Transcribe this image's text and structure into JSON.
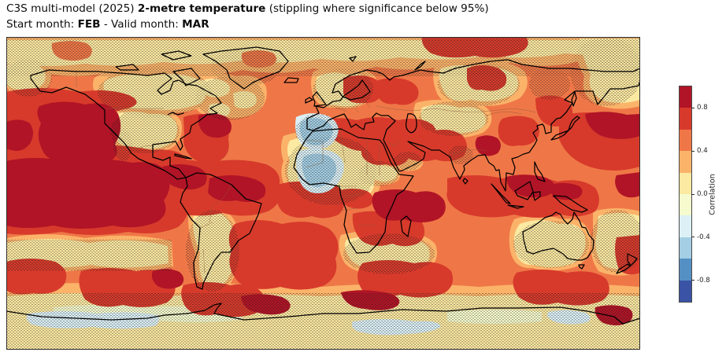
{
  "figure": {
    "background_color": "#ffffff",
    "title": {
      "part1": "C3S multi-model (2025) ",
      "bold1": "2-metre temperature",
      "part2": " (stippling where significance below 95%)"
    },
    "subtitle": {
      "label1": "Start month: ",
      "value1": "FEB",
      "label2": " - Valid month: ",
      "value2": "MAR"
    }
  },
  "map": {
    "projection": "equirectangular (PlateCarree) world map, lon -180..180, lat -90..90",
    "coastline_color": "#000000",
    "country_border_color": "#8a5a3a",
    "frame_color": "#2f2f2f",
    "stipple_color": "#1b1b1b"
  },
  "colorbar": {
    "label": "Correlation",
    "ticks": [
      "0.8",
      "0.4",
      "0.0",
      "-0.4",
      "-0.8"
    ],
    "tick_values": [
      0.8,
      0.4,
      0.0,
      -0.4,
      -0.8
    ],
    "range": [
      -1,
      1
    ],
    "level_boundaries": [
      1.0,
      0.8,
      0.6,
      0.4,
      0.2,
      0.0,
      -0.2,
      -0.4,
      -0.6,
      -0.8,
      -1.0
    ],
    "palette_top_to_bottom": [
      "#b11426",
      "#d73a2b",
      "#ef7747",
      "#fbb36a",
      "#fce9a2",
      "#f6fbce",
      "#dcf0f6",
      "#a3cee3",
      "#5590c4",
      "#3a53a5"
    ]
  },
  "chart_data": {
    "type": "heatmap",
    "subtype": "filled-contour correlation map on world geography with significance stippling",
    "title": "C3S multi-model (2025) 2-metre temperature (stippling where significance below 95%)",
    "subtitle": "Start month: FEB - Valid month: MAR",
    "variable": "Forecast skill (correlation) of 2-metre temperature",
    "colorbar_label": "Correlation",
    "value_range": [
      -1,
      1
    ],
    "contour_levels": [
      -1,
      -0.8,
      -0.6,
      -0.4,
      -0.2,
      0,
      0.2,
      0.4,
      0.6,
      0.8,
      1
    ],
    "tick_labels": [
      "0.8",
      "0.4",
      "0.0",
      "-0.4",
      "-0.8"
    ],
    "stippling_meaning": "stippling where significance below 95%",
    "legend_position": "right vertical colorbar",
    "regional_values": [
      {
        "region": "Tropical central/eastern Pacific (ENSO region)",
        "correlation": 0.9,
        "stippled": false
      },
      {
        "region": "North-east Pacific / Gulf of Alaska",
        "correlation": 0.9,
        "stippled": false
      },
      {
        "region": "Central North Atlantic subtropics",
        "correlation": 0.9,
        "stippled": false
      },
      {
        "region": "Tropical Atlantic and Caribbean",
        "correlation": 0.85,
        "stippled": false
      },
      {
        "region": "Tropical Indian Ocean",
        "correlation": 0.85,
        "stippled": false
      },
      {
        "region": "Tibetan Plateau",
        "correlation": 0.85,
        "stippled": false
      },
      {
        "region": "Pacific east of Japan",
        "correlation": 0.85,
        "stippled": false
      },
      {
        "region": "Maritime Continent seas / Philippines / Timor",
        "correlation": 0.85,
        "stippled": false
      },
      {
        "region": "Ross Sea sector",
        "correlation": 0.9,
        "stippled": false
      },
      {
        "region": "Mediterranean, Black Sea, Middle East",
        "correlation": 0.7,
        "stippled": false
      },
      {
        "region": "Most mid-latitude oceans",
        "correlation": 0.5,
        "stippled": false
      },
      {
        "region": "Northern Canada interior",
        "correlation": 0.15,
        "stippled": true
      },
      {
        "region": "Central United States",
        "correlation": 0.2,
        "stippled": true
      },
      {
        "region": "Arctic band / Bering Sea",
        "correlation": 0.15,
        "stippled": true
      },
      {
        "region": "Scandinavia",
        "correlation": 0.15,
        "stippled": true
      },
      {
        "region": "Central Siberia",
        "correlation": 0.2,
        "stippled": true
      },
      {
        "region": "Central Asia",
        "correlation": 0.15,
        "stippled": true
      },
      {
        "region": "Sahara / Sahel",
        "correlation": 0.1,
        "stippled": true
      },
      {
        "region": "Sudan / Horn of Africa",
        "correlation": 0.1,
        "stippled": true
      },
      {
        "region": "Iberian Peninsula",
        "correlation": -0.3,
        "stippled": true
      },
      {
        "region": "Western Sahara interior",
        "correlation": -0.3,
        "stippled": true
      },
      {
        "region": "Argentina",
        "correlation": 0.1,
        "stippled": true
      },
      {
        "region": "South-east Pacific mid-latitudes",
        "correlation": 0.1,
        "stippled": true
      },
      {
        "region": "Southern Indian Ocean patches",
        "correlation": 0.1,
        "stippled": true
      },
      {
        "region": "Interior Australia",
        "correlation": 0.1,
        "stippled": true
      },
      {
        "region": "New Zealand and surrounding ocean",
        "correlation": 0.15,
        "stippled": true
      },
      {
        "region": "Antarctica interior",
        "correlation": 0.1,
        "stippled": true
      },
      {
        "region": "Antarctic coastal strips",
        "correlation": -0.3,
        "stippled": true
      }
    ]
  }
}
